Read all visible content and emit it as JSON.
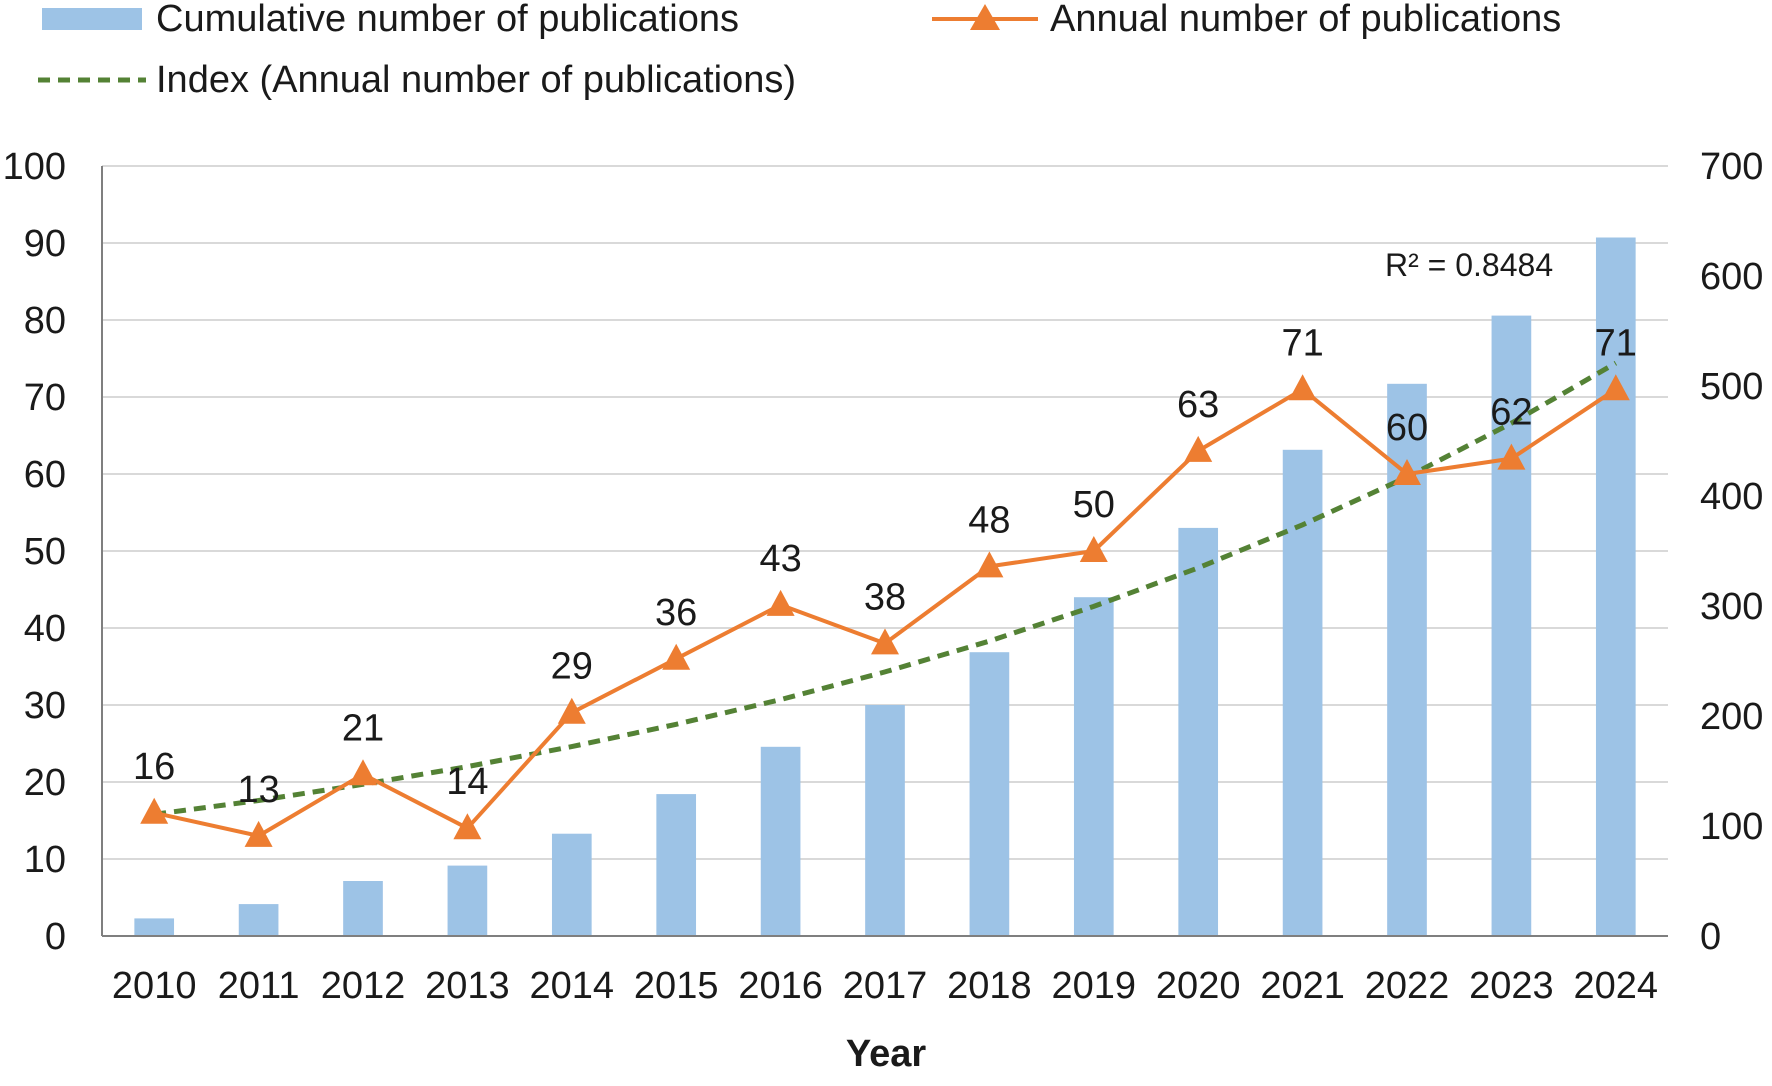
{
  "chart_data": {
    "type": "bar",
    "xlabel": "Year",
    "categories": [
      "2010",
      "2011",
      "2012",
      "2013",
      "2014",
      "2015",
      "2016",
      "2017",
      "2018",
      "2019",
      "2020",
      "2021",
      "2022",
      "2023",
      "2024"
    ],
    "series": [
      {
        "name": "Cumulative number of publications",
        "kind": "bar",
        "axis": "right",
        "color": "#9dc3e6",
        "values": [
          16,
          29,
          50,
          64,
          93,
          129,
          172,
          210,
          258,
          308,
          371,
          442,
          502,
          564,
          635
        ]
      },
      {
        "name": "Annual number of publications",
        "kind": "line",
        "axis": "left",
        "color": "#ed7d31",
        "marker": "triangle",
        "values": [
          16,
          13,
          21,
          14,
          29,
          36,
          43,
          38,
          48,
          50,
          63,
          71,
          60,
          62,
          71
        ],
        "labels": [
          "16",
          "13",
          "21",
          "14",
          "29",
          "36",
          "43",
          "38",
          "48",
          "50",
          "63",
          "71",
          "60",
          "62",
          "71"
        ]
      },
      {
        "name": "Index (Annual number of publications)",
        "kind": "trendline",
        "axis": "left",
        "color": "#548235",
        "dash": "dashed",
        "values": [
          15.8,
          17.6,
          19.7,
          22.0,
          24.6,
          27.5,
          30.7,
          34.3,
          38.3,
          42.8,
          47.8,
          53.4,
          59.6,
          66.6,
          74.4
        ]
      }
    ],
    "y_left": {
      "min": 0,
      "max": 100,
      "ticks": [
        "0",
        "10",
        "20",
        "30",
        "40",
        "50",
        "60",
        "70",
        "80",
        "90",
        "100"
      ]
    },
    "y_right": {
      "min": 0,
      "max": 700,
      "ticks": [
        "0",
        "100",
        "200",
        "300",
        "400",
        "500",
        "600",
        "700"
      ]
    },
    "annotation": "R² = 0.8484",
    "grid": true,
    "legend_position": "top"
  }
}
